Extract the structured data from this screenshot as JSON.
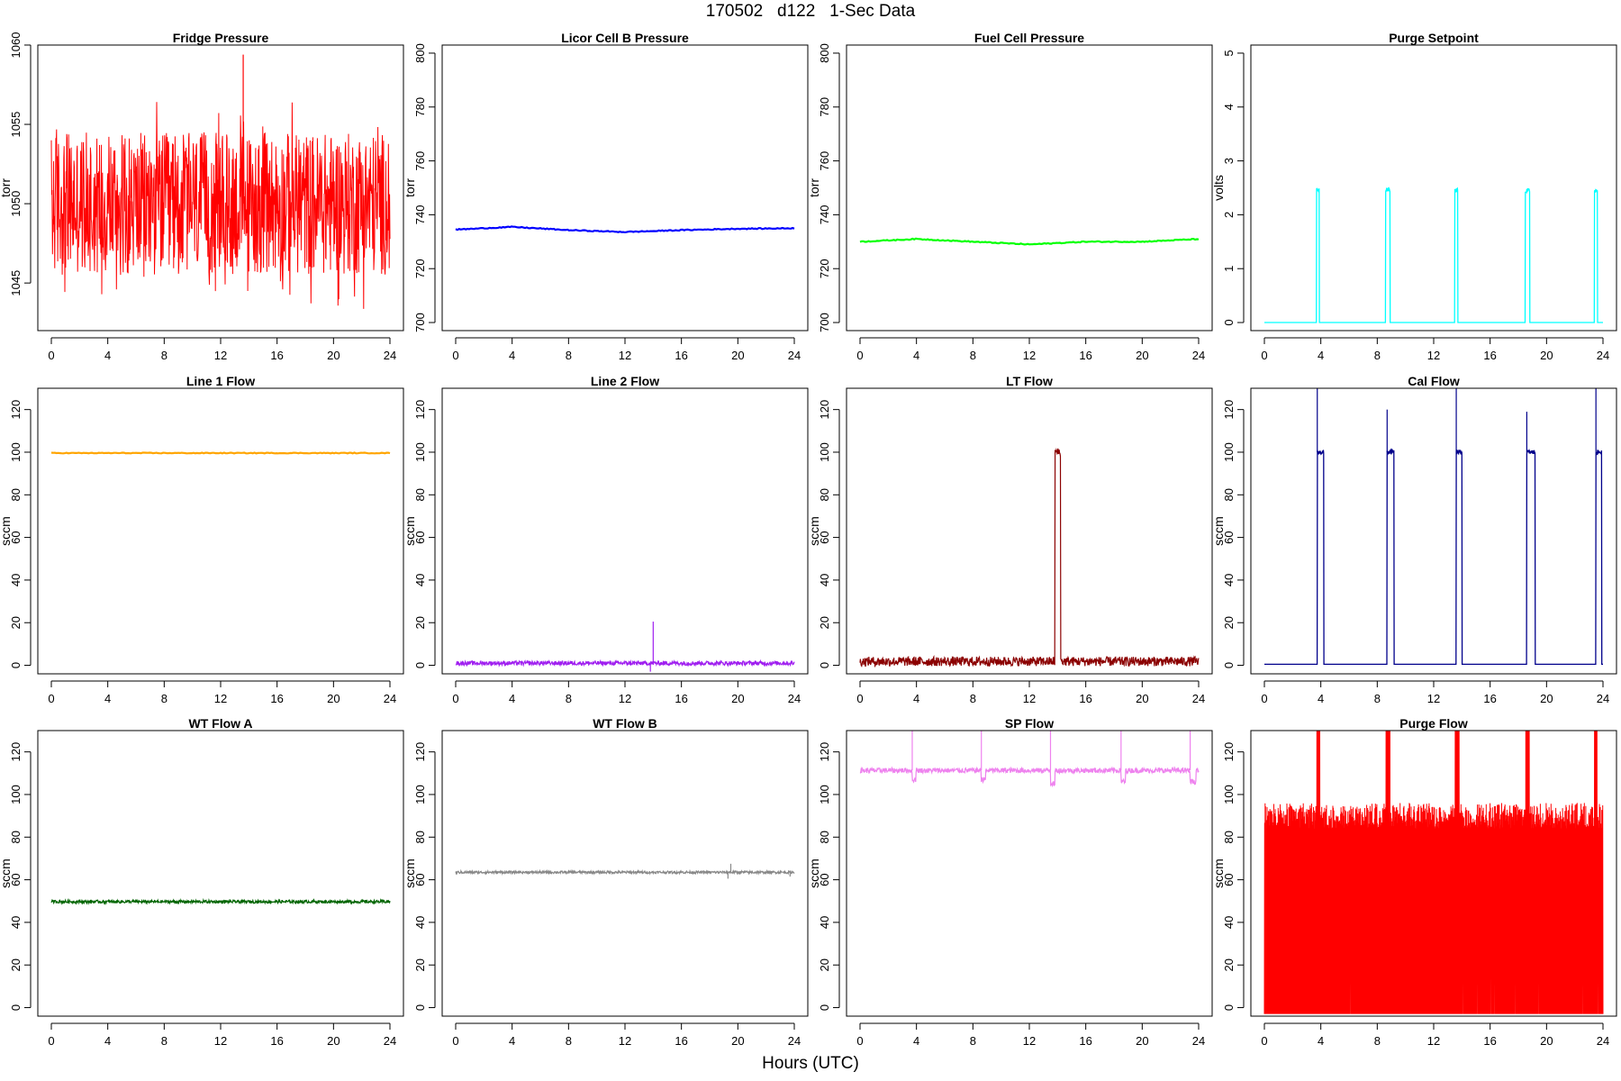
{
  "title": "170502   d122   1-Sec Data",
  "x_axis_label": "Hours (UTC)",
  "chart_data": [
    {
      "type": "line",
      "title": "Fridge Pressure",
      "ylabel": "torr",
      "color": "#ff0000",
      "xlim": [
        0,
        24
      ],
      "ylim": [
        1042,
        1060
      ],
      "x_ticks": [
        0,
        4,
        8,
        12,
        16,
        20,
        24
      ],
      "x_tick_labels": [
        "0",
        "4",
        "8",
        "12",
        "16",
        "20",
        "24"
      ],
      "y_ticks": [
        1045,
        1050,
        1055,
        1060
      ],
      "y_tick_labels": [
        "1045",
        "1050",
        "1055",
        "1060"
      ],
      "series": [
        {
          "pattern": "noise",
          "baseline": 1050,
          "amplitude": 4.5,
          "spikes": [
            {
              "x": 13.6,
              "y": 1059.4
            }
          ]
        }
      ]
    },
    {
      "type": "line",
      "title": "Licor Cell B Pressure",
      "ylabel": "torr",
      "color": "#0000ff",
      "xlim": [
        0,
        24
      ],
      "ylim": [
        697,
        803
      ],
      "x_ticks": [
        0,
        4,
        8,
        12,
        16,
        20,
        24
      ],
      "x_tick_labels": [
        "0",
        "4",
        "8",
        "12",
        "16",
        "20",
        "24"
      ],
      "y_ticks": [
        700,
        720,
        740,
        760,
        780,
        800
      ],
      "y_tick_labels": [
        "700",
        "720",
        "740",
        "760",
        "780",
        "800"
      ],
      "series": [
        {
          "x": [
            0,
            4,
            8,
            12,
            16,
            20,
            24
          ],
          "y": [
            734.5,
            735.5,
            734.3,
            733.6,
            734.3,
            734.8,
            735.0
          ]
        }
      ]
    },
    {
      "type": "line",
      "title": "Fuel Cell Pressure",
      "ylabel": "torr",
      "color": "#00ff00",
      "xlim": [
        0,
        24
      ],
      "ylim": [
        697,
        803
      ],
      "x_ticks": [
        0,
        4,
        8,
        12,
        16,
        20,
        24
      ],
      "x_tick_labels": [
        "0",
        "4",
        "8",
        "12",
        "16",
        "20",
        "24"
      ],
      "y_ticks": [
        700,
        720,
        740,
        760,
        780,
        800
      ],
      "y_tick_labels": [
        "700",
        "720",
        "740",
        "760",
        "780",
        "800"
      ],
      "series": [
        {
          "x": [
            0,
            4,
            8,
            12,
            16,
            20,
            24
          ],
          "y": [
            730.0,
            731.0,
            730.0,
            729.0,
            730.0,
            730.0,
            731.0
          ]
        }
      ]
    },
    {
      "type": "line",
      "title": "Purge Setpoint",
      "ylabel": "volts",
      "color": "#00ffff",
      "xlim": [
        0,
        24
      ],
      "ylim": [
        -0.15,
        5.15
      ],
      "x_ticks": [
        0,
        4,
        8,
        12,
        16,
        20,
        24
      ],
      "x_tick_labels": [
        "0",
        "4",
        "8",
        "12",
        "16",
        "20",
        "24"
      ],
      "y_ticks": [
        0,
        1,
        2,
        3,
        4,
        5
      ],
      "y_tick_labels": [
        "0",
        "1",
        "2",
        "3",
        "4",
        "5"
      ],
      "series": [
        {
          "pattern": "pulses",
          "baseline": 0,
          "level": 2.45,
          "pulses": [
            [
              3.7,
              3.9
            ],
            [
              8.6,
              8.9
            ],
            [
              13.5,
              13.7
            ],
            [
              18.5,
              18.8
            ],
            [
              23.4,
              23.6
            ]
          ]
        }
      ]
    },
    {
      "type": "line",
      "title": "Line 1 Flow",
      "ylabel": "sccm",
      "color": "#ffa500",
      "xlim": [
        0,
        24
      ],
      "ylim": [
        -4,
        130
      ],
      "x_ticks": [
        0,
        4,
        8,
        12,
        16,
        20,
        24
      ],
      "x_tick_labels": [
        "0",
        "4",
        "8",
        "12",
        "16",
        "20",
        "24"
      ],
      "y_ticks": [
        0,
        20,
        40,
        60,
        80,
        100,
        120
      ],
      "y_tick_labels": [
        "0",
        "20",
        "40",
        "60",
        "80",
        "100",
        "120"
      ],
      "series": [
        {
          "x": [
            0,
            24
          ],
          "y": [
            99.6,
            99.6
          ]
        }
      ]
    },
    {
      "type": "line",
      "title": "Line 2 Flow",
      "ylabel": "sccm",
      "color": "#a020f0",
      "xlim": [
        0,
        24
      ],
      "ylim": [
        -4,
        130
      ],
      "x_ticks": [
        0,
        4,
        8,
        12,
        16,
        20,
        24
      ],
      "x_tick_labels": [
        "0",
        "4",
        "8",
        "12",
        "16",
        "20",
        "24"
      ],
      "y_ticks": [
        0,
        20,
        40,
        60,
        80,
        100,
        120
      ],
      "y_tick_labels": [
        "0",
        "20",
        "40",
        "60",
        "80",
        "100",
        "120"
      ],
      "series": [
        {
          "pattern": "band",
          "baseline": 1.0,
          "amplitude": 1.0,
          "spikes": [
            {
              "x": 14.0,
              "y": 20.5
            },
            {
              "x": 13.8,
              "y": -3
            }
          ]
        }
      ]
    },
    {
      "type": "line",
      "title": "LT Flow",
      "ylabel": "sccm",
      "color": "#8b0000",
      "xlim": [
        0,
        24
      ],
      "ylim": [
        -4,
        130
      ],
      "x_ticks": [
        0,
        4,
        8,
        12,
        16,
        20,
        24
      ],
      "x_tick_labels": [
        "0",
        "4",
        "8",
        "12",
        "16",
        "20",
        "24"
      ],
      "y_ticks": [
        0,
        20,
        40,
        60,
        80,
        100,
        120
      ],
      "y_tick_labels": [
        "0",
        "20",
        "40",
        "60",
        "80",
        "100",
        "120"
      ],
      "series": [
        {
          "pattern": "band",
          "baseline": 1.8,
          "amplitude": 2.2,
          "pulses": [
            [
              13.8,
              14.2
            ]
          ],
          "level": 100,
          "level_amplitude": 2
        }
      ]
    },
    {
      "type": "line",
      "title": "Cal Flow",
      "ylabel": "sccm",
      "color": "#00008b",
      "xlim": [
        0,
        24
      ],
      "ylim": [
        -4,
        130
      ],
      "x_ticks": [
        0,
        4,
        8,
        12,
        16,
        20,
        24
      ],
      "x_tick_labels": [
        "0",
        "4",
        "8",
        "12",
        "16",
        "20",
        "24"
      ],
      "y_ticks": [
        0,
        20,
        40,
        60,
        80,
        100,
        120
      ],
      "y_tick_labels": [
        "0",
        "20",
        "40",
        "60",
        "80",
        "100",
        "120"
      ],
      "series": [
        {
          "pattern": "pulses",
          "baseline": 0.5,
          "level": 100,
          "pulses": [
            [
              3.75,
              4.2
            ],
            [
              8.7,
              9.2
            ],
            [
              13.6,
              14.0
            ],
            [
              18.6,
              19.2
            ],
            [
              23.5,
              23.9
            ]
          ],
          "peaks": [
            130,
            120,
            130,
            119,
            130
          ]
        }
      ]
    },
    {
      "type": "line",
      "title": "WT Flow A",
      "ylabel": "sccm",
      "color": "#006400",
      "xlim": [
        0,
        24
      ],
      "ylim": [
        -4,
        130
      ],
      "x_ticks": [
        0,
        4,
        8,
        12,
        16,
        20,
        24
      ],
      "x_tick_labels": [
        "0",
        "4",
        "8",
        "12",
        "16",
        "20",
        "24"
      ],
      "y_ticks": [
        0,
        20,
        40,
        60,
        80,
        100,
        120
      ],
      "y_tick_labels": [
        "0",
        "20",
        "40",
        "60",
        "80",
        "100",
        "120"
      ],
      "series": [
        {
          "pattern": "band",
          "baseline": 49.7,
          "amplitude": 0.7
        }
      ]
    },
    {
      "type": "line",
      "title": "WT Flow B",
      "ylabel": "sccm",
      "color": "#888888",
      "xlim": [
        0,
        24
      ],
      "ylim": [
        -4,
        130
      ],
      "x_ticks": [
        0,
        4,
        8,
        12,
        16,
        20,
        24
      ],
      "x_tick_labels": [
        "0",
        "4",
        "8",
        "12",
        "16",
        "20",
        "24"
      ],
      "y_ticks": [
        0,
        20,
        40,
        60,
        80,
        100,
        120
      ],
      "y_tick_labels": [
        "0",
        "20",
        "40",
        "60",
        "80",
        "100",
        "120"
      ],
      "series": [
        {
          "pattern": "band",
          "baseline": 63.5,
          "amplitude": 0.6,
          "spikes": [
            {
              "x": 19.5,
              "y": 67.5
            },
            {
              "x": 19.3,
              "y": 60.5
            },
            {
              "x": 23.7,
              "y": 61.5
            }
          ]
        }
      ]
    },
    {
      "type": "line",
      "title": "SP Flow",
      "ylabel": "sccm",
      "color": "#ee82ee",
      "xlim": [
        0,
        24
      ],
      "ylim": [
        -4,
        130
      ],
      "x_ticks": [
        0,
        4,
        8,
        12,
        16,
        20,
        24
      ],
      "x_tick_labels": [
        "0",
        "4",
        "8",
        "12",
        "16",
        "20",
        "24"
      ],
      "y_ticks": [
        0,
        20,
        40,
        60,
        80,
        100,
        120
      ],
      "y_tick_labels": [
        "0",
        "20",
        "40",
        "60",
        "80",
        "100",
        "120"
      ],
      "series": [
        {
          "pattern": "band",
          "baseline": 111.3,
          "amplitude": 1.2,
          "dips": [
            [
              3.7,
              3.95,
              107
            ],
            [
              8.6,
              8.9,
              107
            ],
            [
              13.5,
              13.8,
              105
            ],
            [
              18.5,
              18.8,
              106
            ],
            [
              23.4,
              23.8,
              106
            ]
          ],
          "spikes": [
            {
              "x": 3.7,
              "y": 130
            },
            {
              "x": 8.6,
              "y": 130
            },
            {
              "x": 13.5,
              "y": 130
            },
            {
              "x": 18.5,
              "y": 130
            },
            {
              "x": 23.4,
              "y": 130
            }
          ]
        }
      ]
    },
    {
      "type": "line",
      "title": "Purge Flow",
      "ylabel": "sccm",
      "color": "#ff0000",
      "xlim": [
        0,
        24
      ],
      "ylim": [
        -4,
        130
      ],
      "x_ticks": [
        0,
        4,
        8,
        12,
        16,
        20,
        24
      ],
      "x_tick_labels": [
        "0",
        "4",
        "8",
        "12",
        "16",
        "20",
        "24"
      ],
      "y_ticks": [
        0,
        20,
        40,
        60,
        80,
        100,
        120
      ],
      "y_tick_labels": [
        "0",
        "20",
        "40",
        "60",
        "80",
        "100",
        "120"
      ],
      "series": [
        {
          "pattern": "dense",
          "baseline": -3,
          "top": 96,
          "amplitude": 8,
          "pulses": [
            [
              3.7,
              3.95
            ],
            [
              8.6,
              8.9
            ],
            [
              13.5,
              13.8
            ],
            [
              18.5,
              18.8
            ],
            [
              23.4,
              23.6
            ]
          ],
          "level": 130
        }
      ]
    }
  ]
}
